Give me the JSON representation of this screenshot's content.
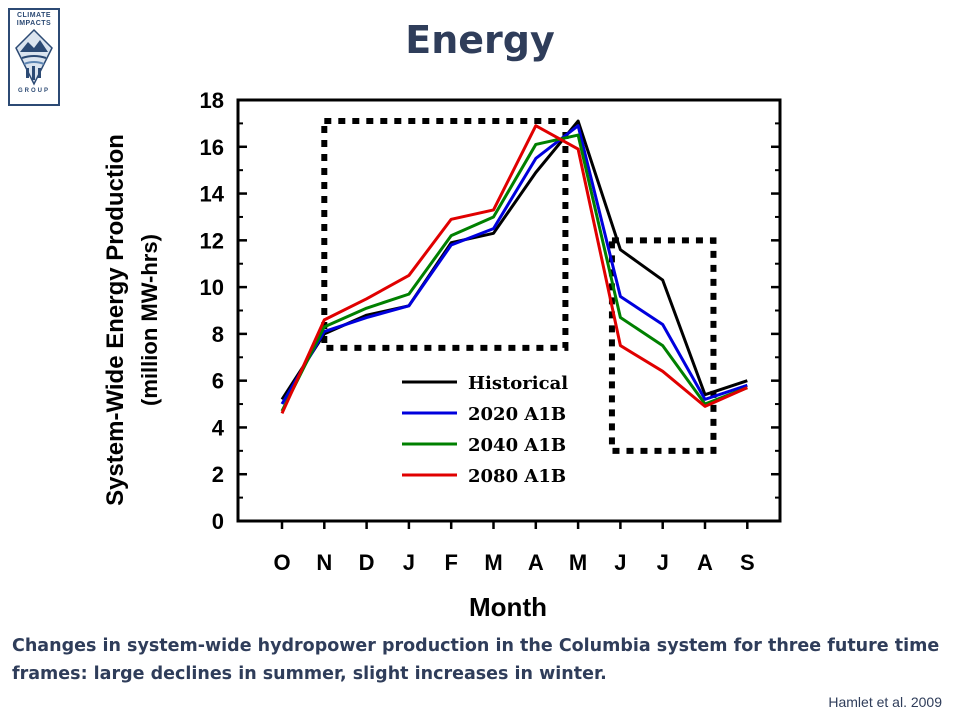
{
  "slide": {
    "title": "Energy",
    "caption": "Changes in system-wide hydropower production in the Columbia system for three future time frames: large declines in summer, slight increases in winter.",
    "citation": "Hamlet et al. 2009",
    "logo_top": "CLIMATE IMPACTS",
    "logo_bottom": "GROUP"
  },
  "chart_data": {
    "type": "line",
    "title": "",
    "xlabel": "Month",
    "ylabel": "System-Wide Energy Production (million MW-hrs)",
    "categories": [
      "O",
      "N",
      "D",
      "J",
      "F",
      "M",
      "A",
      "M",
      "J",
      "J",
      "A",
      "S"
    ],
    "ylim": [
      0,
      18
    ],
    "yticks": [
      0,
      2,
      4,
      6,
      8,
      10,
      12,
      14,
      16,
      18
    ],
    "grid": false,
    "legend_position": "bottom-center",
    "series": [
      {
        "name": "Historical",
        "color": "#000000",
        "values": [
          5.2,
          8.0,
          8.8,
          9.2,
          11.9,
          12.3,
          14.9,
          17.1,
          11.6,
          10.3,
          5.4,
          6.0
        ]
      },
      {
        "name": "2020 A1B",
        "color": "#0000dd",
        "values": [
          5.0,
          8.1,
          8.7,
          9.2,
          11.8,
          12.5,
          15.5,
          16.9,
          9.6,
          8.4,
          5.2,
          5.8
        ]
      },
      {
        "name": "2040 A1B",
        "color": "#008000",
        "values": [
          4.7,
          8.3,
          9.1,
          9.7,
          12.2,
          13.0,
          16.1,
          16.5,
          8.7,
          7.5,
          5.0,
          5.7
        ]
      },
      {
        "name": "2080 A1B",
        "color": "#e00000",
        "values": [
          4.6,
          8.6,
          9.5,
          10.5,
          12.9,
          13.3,
          16.9,
          15.9,
          7.5,
          6.4,
          4.9,
          5.7
        ]
      }
    ],
    "annotations": [
      {
        "type": "dotted-box",
        "from_category_index": 1,
        "to_category_index": 6.7,
        "y_range": [
          7.4,
          17.1
        ]
      },
      {
        "type": "dotted-box",
        "from_category_index": 7.8,
        "to_category_index": 10.2,
        "y_range": [
          3.0,
          12.0
        ]
      }
    ]
  }
}
